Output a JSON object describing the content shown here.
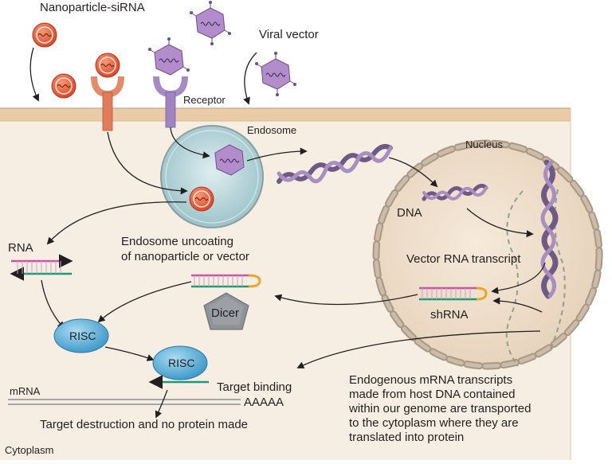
{
  "labels": {
    "nanoparticle": "Nanoparticle-siRNA",
    "viral_vector": "Viral vector",
    "receptor": "Receptor",
    "endosome": "Endosome",
    "nucleus": "Nucleus",
    "dna": "DNA",
    "rna": "RNA",
    "uncoating_line1": "Endosome uncoating",
    "uncoating_line2": "of nanoparticle or vector",
    "vector_rna": "Vector RNA transcript",
    "shrna": "shRNA",
    "dicer": "Dicer",
    "risc1": "RISC",
    "risc2": "RISC",
    "target_binding": "Target binding",
    "mrna": "mRNA",
    "polya": "AAAAA",
    "target_destruction": "Target destruction and no protein made",
    "cytoplasm": "Cytoplasm",
    "endogenous_lines": [
      "Endogenous mRNA transcripts",
      "made from host DNA contained",
      "within our genome are transported",
      "to the cytoplasm where they are",
      "translated into protein"
    ]
  },
  "colors": {
    "cytoplasm": "#f5ede1",
    "membrane": "#e7c9a6",
    "nanoparticle": "#e8613a",
    "virus": "#b48cc7",
    "endosome": "#c8dfe3",
    "nucleus": "#eeddc9",
    "risc": "#5fb3dc",
    "dicer": "#8a8f94",
    "rna_sense": "#c355a9",
    "rna_antisense": "#1a9a77",
    "loop": "#f0a32a"
  }
}
